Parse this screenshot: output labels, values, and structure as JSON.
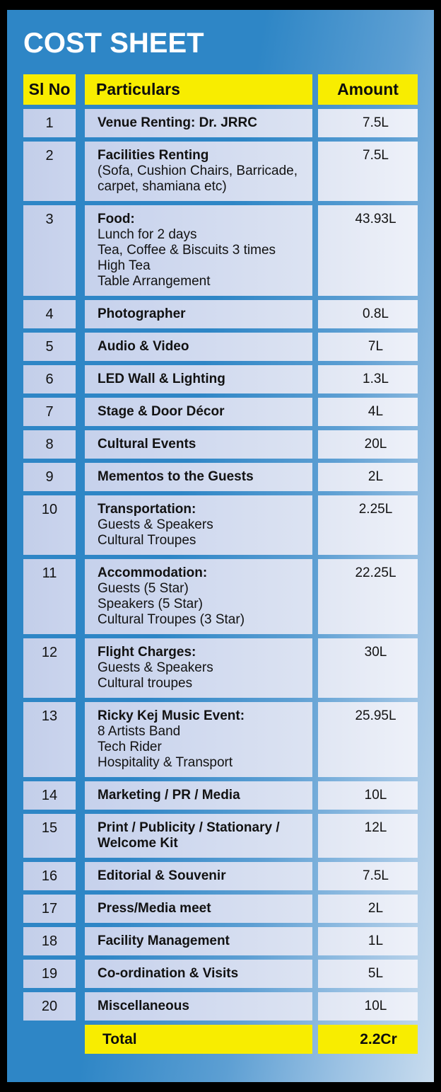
{
  "title": "COST SHEET",
  "colors": {
    "background_blue": "#2e86c6",
    "header_yellow": "#f8ed00",
    "cell_periwinkle": "#c6d1ec",
    "cell_light": "#eef1f9",
    "title_text": "#ffffff",
    "body_text": "#121212"
  },
  "table": {
    "headers": {
      "sl_no": "Sl No",
      "particulars": "Particulars",
      "amount": "Amount"
    },
    "rows": [
      {
        "no": "1",
        "title": "Venue Renting: Dr. JRRC",
        "details": [],
        "amount": "7.5L"
      },
      {
        "no": "2",
        "title": "Facilities Renting",
        "details": [
          "(Sofa, Cushion Chairs, Barricade, carpet, shamiana etc)"
        ],
        "amount": "7.5L"
      },
      {
        "no": "3",
        "title": "Food:",
        "details": [
          "Lunch for 2 days",
          "Tea, Coffee & Biscuits 3 times",
          "High Tea",
          "Table Arrangement"
        ],
        "amount": "43.93L"
      },
      {
        "no": "4",
        "title": "Photographer",
        "details": [],
        "amount": "0.8L"
      },
      {
        "no": "5",
        "title": "Audio & Video",
        "details": [],
        "amount": "7L"
      },
      {
        "no": "6",
        "title": "LED Wall & Lighting",
        "details": [],
        "amount": "1.3L"
      },
      {
        "no": "7",
        "title": "Stage & Door Décor",
        "details": [],
        "amount": "4L"
      },
      {
        "no": "8",
        "title": "Cultural Events",
        "details": [],
        "amount": "20L"
      },
      {
        "no": "9",
        "title": "Mementos to the Guests",
        "details": [],
        "amount": "2L"
      },
      {
        "no": "10",
        "title": "Transportation:",
        "details": [
          "Guests & Speakers",
          "Cultural Troupes"
        ],
        "amount": "2.25L"
      },
      {
        "no": "11",
        "title": "Accommodation:",
        "details": [
          "Guests (5 Star)",
          "Speakers (5 Star)",
          "Cultural Troupes (3 Star)"
        ],
        "amount": "22.25L"
      },
      {
        "no": "12",
        "title": "Flight Charges:",
        "details": [
          "Guests & Speakers",
          "Cultural troupes"
        ],
        "amount": "30L"
      },
      {
        "no": "13",
        "title": "Ricky Kej Music Event:",
        "details": [
          "8 Artists Band",
          "Tech Rider",
          "Hospitality & Transport"
        ],
        "amount": "25.95L"
      },
      {
        "no": "14",
        "title": "Marketing / PR / Media",
        "details": [],
        "amount": "10L"
      },
      {
        "no": "15",
        "title": "Print / Publicity / Stationary / Welcome Kit",
        "details": [],
        "amount": "12L"
      },
      {
        "no": "16",
        "title": "Editorial & Souvenir",
        "details": [],
        "amount": "7.5L"
      },
      {
        "no": "17",
        "title": "Press/Media meet",
        "details": [],
        "amount": "2L"
      },
      {
        "no": "18",
        "title": "Facility Management",
        "details": [],
        "amount": "1L"
      },
      {
        "no": "19",
        "title": "Co-ordination & Visits",
        "details": [],
        "amount": "5L"
      },
      {
        "no": "20",
        "title": "Miscellaneous",
        "details": [],
        "amount": "10L"
      }
    ],
    "total": {
      "label": "Total",
      "amount": "2.2Cr"
    }
  }
}
